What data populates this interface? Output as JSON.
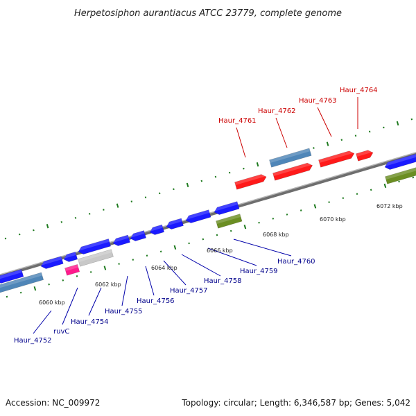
{
  "title": "Herpetosiphon aurantiacus ATCC 23779, complete genome",
  "footer": {
    "accession": "Accession: NC_009972",
    "topology": "Topology: circular; Length: 6,346,587 bp; Genes: 5,042"
  },
  "colors": {
    "backbone": "#888888",
    "tick": "#1e7a1e",
    "forward_gene": "#1a1aff",
    "reverse_gene": "#ff1a1a",
    "rna": "#4f86b8",
    "olive": "#6b8e23",
    "pink": "#ff1a8c",
    "gray_gene": "#c8c8c8",
    "label_blue": "#00008b",
    "label_red": "#cc0000"
  },
  "scale_labels": [
    "6060 kbp",
    "6062 kbp",
    "6064 kbp",
    "6066 kbp",
    "6068 kbp",
    "6070 kbp",
    "6072 kbp"
  ],
  "gene_labels_bottom": [
    "Haur_4752",
    "ruvC",
    "Haur_4754",
    "Haur_4755",
    "Haur_4756",
    "Haur_4757",
    "Haur_4758",
    "Haur_4759",
    "Haur_4760"
  ],
  "gene_labels_top": [
    "Haur_4761",
    "Haur_4762",
    "Haur_4763",
    "Haur_4764"
  ]
}
